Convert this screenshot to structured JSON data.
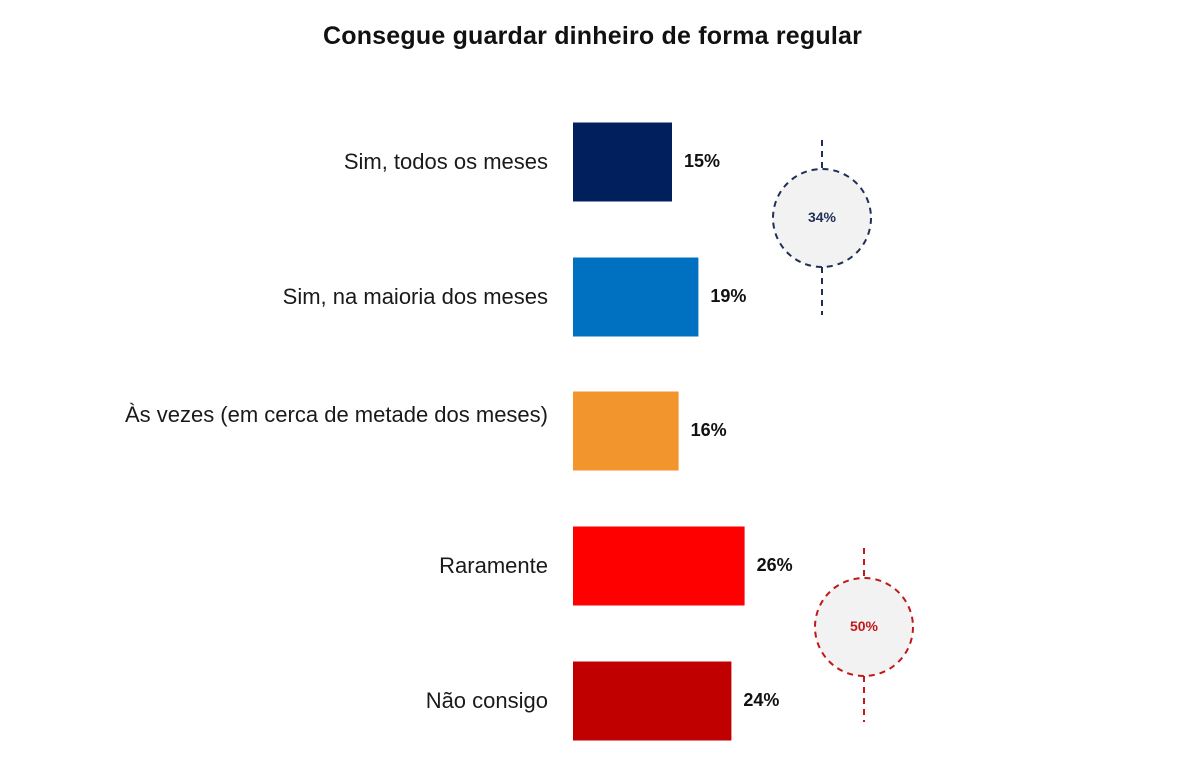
{
  "chart_data": {
    "type": "bar",
    "orientation": "horizontal",
    "title": "Consegue guardar dinheiro de forma regular",
    "categories": [
      "Sim, todos os meses",
      "Sim, na maioria dos meses",
      "Às vezes (em cerca de metade dos meses)",
      "Raramente",
      "Não consigo"
    ],
    "values": [
      15,
      19,
      16,
      26,
      24
    ],
    "value_labels": [
      "15%",
      "19%",
      "16%",
      "26%",
      "24%"
    ],
    "colors": [
      "#001F5C",
      "#0070C0",
      "#F2952C",
      "#FF0000",
      "#C00000"
    ],
    "groups": [
      {
        "label": "34%",
        "value": 34,
        "categories": [
          0,
          1
        ],
        "color": "#1F2F55"
      },
      {
        "label": "50%",
        "value": 50,
        "categories": [
          3,
          4
        ],
        "color": "#C0181B"
      }
    ],
    "grid": false,
    "legend": "none"
  }
}
